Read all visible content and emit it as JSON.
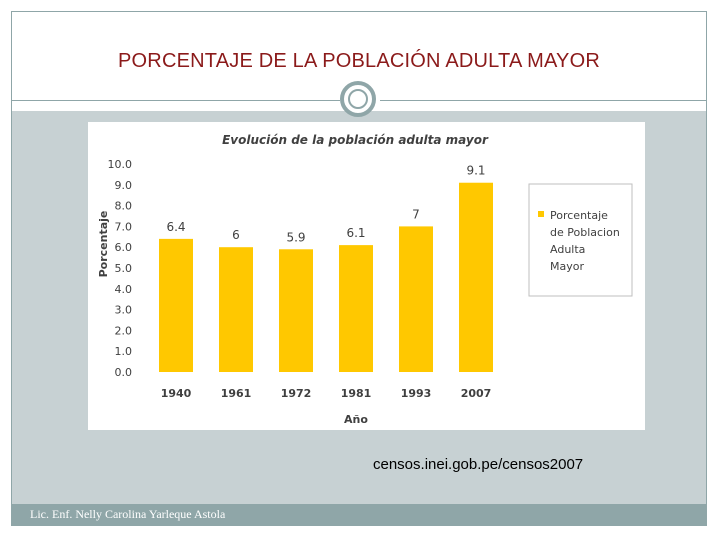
{
  "slide": {
    "title": "PORCENTAJE DE LA POBLACIÓN ADULTA MAYOR",
    "source": "censos.inei.gob.pe/censos2007",
    "footer": "Lic. Enf. Nelly Carolina Yarleque Astola"
  },
  "colors": {
    "bar": "#FFC800",
    "title": "#8B1A1A",
    "accent": "#8FA6A8"
  },
  "chart_data": {
    "type": "bar",
    "title": "Evolución de la población  adulta mayor",
    "xlabel": "Año",
    "ylabel": "Porcentaje",
    "categories": [
      "1940",
      "1961",
      "1972",
      "1981",
      "1993",
      "2007"
    ],
    "series": [
      {
        "name": "Porcentaje de Poblacion Adulta Mayor",
        "legend_lines": [
          "Porcentaje",
          "de Poblacion",
          "Adulta",
          "Mayor"
        ],
        "values": [
          6.4,
          6,
          5.9,
          6.1,
          7,
          9.1
        ],
        "value_labels": [
          "6.4",
          "6",
          "5.9",
          "6.1",
          "7",
          "9.1"
        ]
      }
    ],
    "ylim": [
      0,
      10
    ],
    "yticks": [
      "0.0",
      "1.0",
      "2.0",
      "3.0",
      "4.0",
      "5.0",
      "6.0",
      "7.0",
      "8.0",
      "9.0",
      "10.0"
    ],
    "grid": false,
    "legend_position": "right"
  }
}
